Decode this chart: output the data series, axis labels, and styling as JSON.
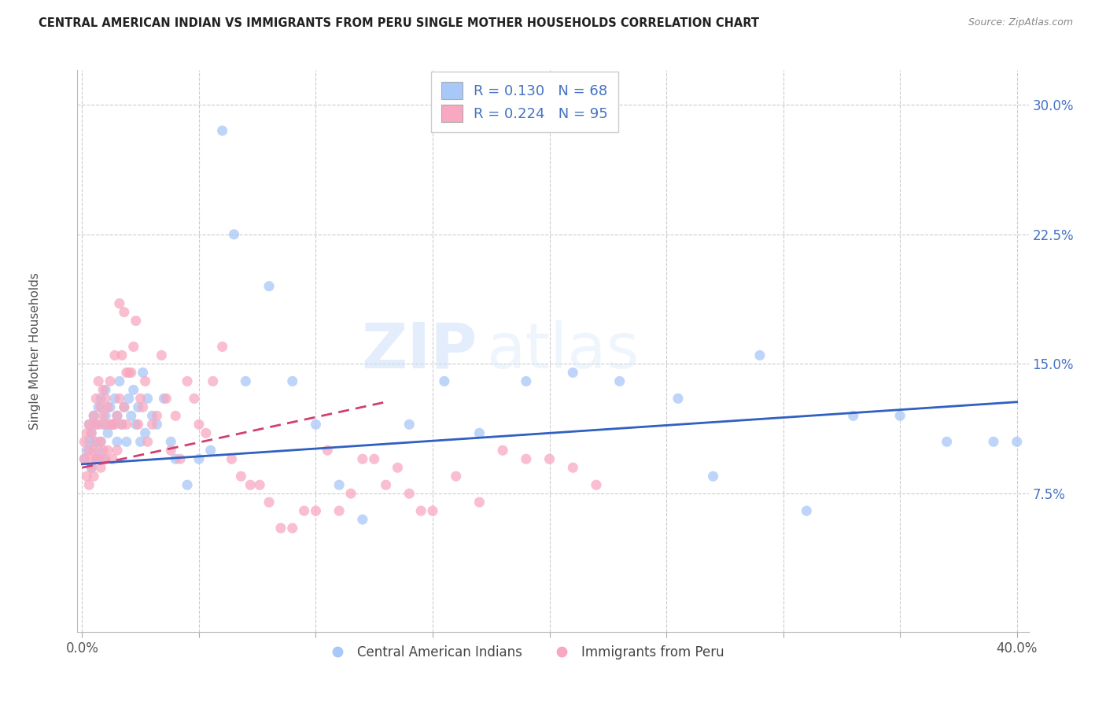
{
  "title": "CENTRAL AMERICAN INDIAN VS IMMIGRANTS FROM PERU SINGLE MOTHER HOUSEHOLDS CORRELATION CHART",
  "source": "Source: ZipAtlas.com",
  "ylabel": "Single Mother Households",
  "yticks": [
    "7.5%",
    "15.0%",
    "22.5%",
    "30.0%"
  ],
  "ytick_vals": [
    0.075,
    0.15,
    0.225,
    0.3
  ],
  "xtick_vals": [
    0.0,
    0.05,
    0.1,
    0.15,
    0.2,
    0.25,
    0.3,
    0.35,
    0.4
  ],
  "xlim": [
    -0.002,
    0.405
  ],
  "ylim": [
    -0.005,
    0.32
  ],
  "blue_R": 0.13,
  "blue_N": 68,
  "pink_R": 0.224,
  "pink_N": 95,
  "blue_color": "#a8c8f8",
  "pink_color": "#f8a8c0",
  "blue_line_color": "#3060c0",
  "pink_line_color": "#d04070",
  "legend_label_blue": "Central American Indians",
  "legend_label_pink": "Immigrants from Peru",
  "watermark_zip": "ZIP",
  "watermark_atlas": "atlas",
  "blue_scatter_x": [
    0.001,
    0.002,
    0.003,
    0.003,
    0.004,
    0.004,
    0.005,
    0.005,
    0.006,
    0.006,
    0.007,
    0.007,
    0.008,
    0.008,
    0.009,
    0.009,
    0.01,
    0.01,
    0.011,
    0.012,
    0.013,
    0.014,
    0.015,
    0.015,
    0.016,
    0.017,
    0.018,
    0.019,
    0.02,
    0.021,
    0.022,
    0.023,
    0.024,
    0.025,
    0.026,
    0.027,
    0.028,
    0.03,
    0.032,
    0.035,
    0.038,
    0.04,
    0.045,
    0.05,
    0.055,
    0.06,
    0.065,
    0.07,
    0.08,
    0.09,
    0.1,
    0.11,
    0.12,
    0.14,
    0.155,
    0.17,
    0.19,
    0.21,
    0.23,
    0.255,
    0.27,
    0.29,
    0.31,
    0.33,
    0.35,
    0.37,
    0.39,
    0.4
  ],
  "blue_scatter_y": [
    0.095,
    0.1,
    0.105,
    0.115,
    0.11,
    0.09,
    0.12,
    0.105,
    0.115,
    0.095,
    0.125,
    0.1,
    0.13,
    0.105,
    0.115,
    0.095,
    0.12,
    0.135,
    0.11,
    0.125,
    0.115,
    0.13,
    0.12,
    0.105,
    0.14,
    0.115,
    0.125,
    0.105,
    0.13,
    0.12,
    0.135,
    0.115,
    0.125,
    0.105,
    0.145,
    0.11,
    0.13,
    0.12,
    0.115,
    0.13,
    0.105,
    0.095,
    0.08,
    0.095,
    0.1,
    0.285,
    0.225,
    0.14,
    0.195,
    0.14,
    0.115,
    0.08,
    0.06,
    0.115,
    0.14,
    0.11,
    0.14,
    0.145,
    0.14,
    0.13,
    0.085,
    0.155,
    0.065,
    0.12,
    0.12,
    0.105,
    0.105,
    0.105
  ],
  "pink_scatter_x": [
    0.001,
    0.001,
    0.002,
    0.002,
    0.003,
    0.003,
    0.003,
    0.004,
    0.004,
    0.004,
    0.005,
    0.005,
    0.005,
    0.005,
    0.006,
    0.006,
    0.006,
    0.007,
    0.007,
    0.007,
    0.008,
    0.008,
    0.008,
    0.009,
    0.009,
    0.009,
    0.01,
    0.01,
    0.01,
    0.011,
    0.011,
    0.012,
    0.012,
    0.013,
    0.013,
    0.014,
    0.014,
    0.015,
    0.015,
    0.016,
    0.016,
    0.017,
    0.017,
    0.018,
    0.018,
    0.019,
    0.019,
    0.02,
    0.021,
    0.022,
    0.023,
    0.024,
    0.025,
    0.026,
    0.027,
    0.028,
    0.03,
    0.032,
    0.034,
    0.036,
    0.038,
    0.04,
    0.042,
    0.045,
    0.048,
    0.05,
    0.053,
    0.056,
    0.06,
    0.064,
    0.068,
    0.072,
    0.076,
    0.08,
    0.085,
    0.09,
    0.095,
    0.1,
    0.105,
    0.11,
    0.115,
    0.12,
    0.125,
    0.13,
    0.135,
    0.14,
    0.145,
    0.15,
    0.16,
    0.17,
    0.18,
    0.19,
    0.2,
    0.21,
    0.22
  ],
  "pink_scatter_y": [
    0.095,
    0.105,
    0.085,
    0.11,
    0.08,
    0.1,
    0.115,
    0.09,
    0.11,
    0.095,
    0.12,
    0.1,
    0.115,
    0.085,
    0.13,
    0.105,
    0.095,
    0.14,
    0.115,
    0.095,
    0.125,
    0.105,
    0.09,
    0.12,
    0.1,
    0.135,
    0.115,
    0.095,
    0.13,
    0.125,
    0.1,
    0.14,
    0.115,
    0.115,
    0.095,
    0.155,
    0.115,
    0.12,
    0.1,
    0.185,
    0.13,
    0.155,
    0.115,
    0.18,
    0.125,
    0.145,
    0.115,
    0.145,
    0.145,
    0.16,
    0.175,
    0.115,
    0.13,
    0.125,
    0.14,
    0.105,
    0.115,
    0.12,
    0.155,
    0.13,
    0.1,
    0.12,
    0.095,
    0.14,
    0.13,
    0.115,
    0.11,
    0.14,
    0.16,
    0.095,
    0.085,
    0.08,
    0.08,
    0.07,
    0.055,
    0.055,
    0.065,
    0.065,
    0.1,
    0.065,
    0.075,
    0.095,
    0.095,
    0.08,
    0.09,
    0.075,
    0.065,
    0.065,
    0.085,
    0.07,
    0.1,
    0.095,
    0.095,
    0.09,
    0.08
  ]
}
